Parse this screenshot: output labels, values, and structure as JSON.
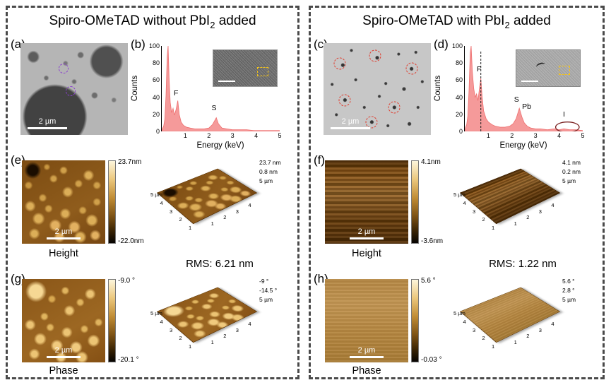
{
  "panels": [
    {
      "title": {
        "pre": "Spiro-OMeTAD without PbI",
        "sub": "2",
        "post": " added"
      },
      "sem": {
        "label": "(a)",
        "scalebar": "2 µm"
      },
      "eds": {
        "label": "(b)"
      },
      "height": {
        "label": "(e)",
        "caption": "Height",
        "scalebar": "2 µm",
        "bar_max": "23.7nm",
        "bar_min": "-22.0nm",
        "plot3d": {
          "z_labels": [
            "23.7 nm",
            "0.8 nm",
            "5 µm"
          ],
          "ticks_left": [
            "5 µm",
            "4",
            "3",
            "2",
            "1"
          ],
          "ticks_right": [
            "1",
            "2",
            "3",
            "4"
          ]
        }
      },
      "rms": "RMS: 6.21 nm",
      "phase": {
        "label": "(g)",
        "caption": "Phase",
        "scalebar": "2 µm",
        "bar_max": "-9.0 °",
        "bar_min": "-20.1 °",
        "plot3d": {
          "z_labels": [
            "-9 °",
            "-14.5 °",
            "5 µm"
          ],
          "ticks_left": [
            "5 µm",
            "4",
            "3",
            "2",
            "1"
          ],
          "ticks_right": [
            "1",
            "2",
            "3",
            "4"
          ]
        }
      }
    },
    {
      "title": {
        "pre": "Spiro-OMeTAD with PbI",
        "sub": "2",
        "post": " added"
      },
      "sem": {
        "label": "(c)",
        "scalebar": "2 µm"
      },
      "eds": {
        "label": "(d)"
      },
      "height": {
        "label": "(f)",
        "caption": "Height",
        "scalebar": "2 µm",
        "bar_max": "4.1nm",
        "bar_min": "-3.6nm",
        "plot3d": {
          "z_labels": [
            "4.1 nm",
            "0.2 nm",
            "5 µm"
          ],
          "ticks_left": [
            "5 µm",
            "4",
            "3",
            "2",
            "1"
          ],
          "ticks_right": [
            "1",
            "2",
            "3",
            "4"
          ]
        }
      },
      "rms": "RMS: 1.22 nm",
      "phase": {
        "label": "(h)",
        "caption": "Phase",
        "scalebar": "2 µm",
        "bar_max": "5.6 °",
        "bar_min": "-0.03 °",
        "plot3d": {
          "z_labels": [
            "5.6 °",
            "2.8 °",
            "5 µm"
          ],
          "ticks_left": [
            "5 µm",
            "4",
            "3",
            "2",
            "1"
          ],
          "ticks_right": [
            "1",
            "2",
            "3",
            "4"
          ]
        }
      }
    }
  ],
  "chart_data": [
    {
      "type": "area",
      "title": "EDS spectrum of Spiro-OMeTAD without PbI2 added",
      "xlabel": "Energy (keV)",
      "ylabel": "Counts",
      "xlim": [
        0,
        5
      ],
      "ylim": [
        0,
        100
      ],
      "xticks": [
        1,
        2,
        3,
        4,
        5
      ],
      "yticks": [
        0,
        20,
        40,
        60,
        80,
        100
      ],
      "series_color": "#f59a9a",
      "points": [
        [
          0.02,
          3
        ],
        [
          0.08,
          6
        ],
        [
          0.13,
          14
        ],
        [
          0.18,
          42
        ],
        [
          0.23,
          88
        ],
        [
          0.27,
          100
        ],
        [
          0.31,
          62
        ],
        [
          0.36,
          34
        ],
        [
          0.42,
          22
        ],
        [
          0.48,
          27
        ],
        [
          0.54,
          19
        ],
        [
          0.61,
          26
        ],
        [
          0.68,
          36
        ],
        [
          0.74,
          20
        ],
        [
          0.82,
          11
        ],
        [
          0.92,
          7
        ],
        [
          1.05,
          5
        ],
        [
          1.2,
          4
        ],
        [
          1.4,
          3
        ],
        [
          1.6,
          3
        ],
        [
          1.8,
          3
        ],
        [
          2.0,
          4
        ],
        [
          2.15,
          8
        ],
        [
          2.25,
          13
        ],
        [
          2.31,
          16
        ],
        [
          2.4,
          9
        ],
        [
          2.55,
          4
        ],
        [
          2.75,
          3
        ],
        [
          3.0,
          2
        ],
        [
          3.3,
          2
        ],
        [
          3.6,
          2
        ],
        [
          3.9,
          1
        ],
        [
          4.2,
          1
        ],
        [
          4.5,
          1
        ],
        [
          4.8,
          1
        ],
        [
          5.0,
          1
        ]
      ],
      "peaks": [
        {
          "label": "F",
          "x": 0.6,
          "y": 40
        },
        {
          "label": "S",
          "x": 2.2,
          "y": 22
        }
      ],
      "annotations": []
    },
    {
      "type": "area",
      "title": "EDS spectrum of Spiro-OMeTAD with PbI2 added",
      "xlabel": "Energy (keV)",
      "ylabel": "Counts",
      "xlim": [
        0,
        5
      ],
      "ylim": [
        0,
        100
      ],
      "xticks": [
        1,
        2,
        3,
        4,
        5
      ],
      "yticks": [
        0,
        20,
        40,
        60,
        80,
        100
      ],
      "series_color": "#f59a9a",
      "points": [
        [
          0.02,
          4
        ],
        [
          0.08,
          8
        ],
        [
          0.13,
          18
        ],
        [
          0.18,
          48
        ],
        [
          0.23,
          92
        ],
        [
          0.27,
          100
        ],
        [
          0.32,
          70
        ],
        [
          0.38,
          50
        ],
        [
          0.44,
          40
        ],
        [
          0.5,
          44
        ],
        [
          0.56,
          36
        ],
        [
          0.62,
          50
        ],
        [
          0.68,
          62
        ],
        [
          0.73,
          42
        ],
        [
          0.8,
          24
        ],
        [
          0.9,
          15
        ],
        [
          1.0,
          11
        ],
        [
          1.15,
          8
        ],
        [
          1.3,
          6
        ],
        [
          1.5,
          5
        ],
        [
          1.7,
          5
        ],
        [
          1.9,
          6
        ],
        [
          2.05,
          9
        ],
        [
          2.18,
          15
        ],
        [
          2.31,
          27
        ],
        [
          2.42,
          17
        ],
        [
          2.52,
          10
        ],
        [
          2.65,
          6
        ],
        [
          2.8,
          4
        ],
        [
          3.0,
          3
        ],
        [
          3.2,
          3
        ],
        [
          3.5,
          2
        ],
        [
          3.8,
          3
        ],
        [
          4.0,
          2
        ],
        [
          4.2,
          3
        ],
        [
          4.45,
          2
        ],
        [
          4.7,
          2
        ],
        [
          5.0,
          1
        ]
      ],
      "peaks": [
        {
          "label": "F",
          "x": 0.6,
          "y": 68
        },
        {
          "label": "S",
          "x": 2.18,
          "y": 32
        },
        {
          "label": "Pb",
          "x": 2.52,
          "y": 24
        },
        {
          "label": "I",
          "x": 4.25,
          "y": 15
        }
      ],
      "annotations": [
        {
          "type": "vline",
          "x": 0.68,
          "y": 95
        },
        {
          "type": "ellipse",
          "cx": 4.35,
          "cy": 5,
          "rx": 0.5,
          "ry": 6
        }
      ]
    }
  ]
}
